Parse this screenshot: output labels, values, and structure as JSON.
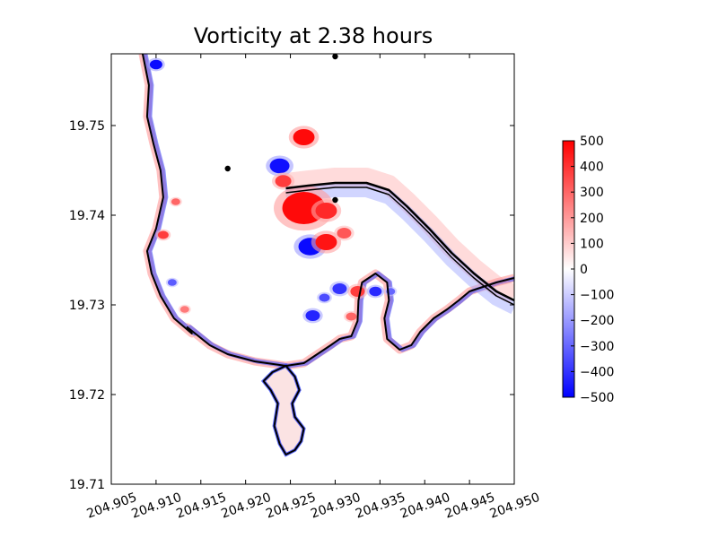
{
  "chart_data": {
    "type": "heatmap",
    "title": "Vorticity at 2.38 hours",
    "xlabel": "",
    "ylabel": "",
    "xlim": [
      204.905,
      204.95
    ],
    "ylim": [
      19.71,
      19.758
    ],
    "x_ticks": [
      "204.905",
      "204.910",
      "204.915",
      "204.920",
      "204.925",
      "204.930",
      "204.935",
      "204.940",
      "204.945",
      "204.950"
    ],
    "y_ticks": [
      "19.71",
      "19.72",
      "19.73",
      "19.74",
      "19.75"
    ],
    "x_tick_values": [
      204.905,
      204.91,
      204.915,
      204.92,
      204.925,
      204.93,
      204.935,
      204.94,
      204.945,
      204.95
    ],
    "y_tick_values": [
      19.71,
      19.72,
      19.73,
      19.74,
      19.75
    ],
    "colorbar": {
      "range": [
        -500,
        500
      ],
      "ticks": [
        "500",
        "400",
        "300",
        "200",
        "100",
        "0",
        "−100",
        "−200",
        "−300",
        "−400",
        "−500"
      ],
      "tick_values": [
        500,
        400,
        300,
        200,
        100,
        0,
        -100,
        -200,
        -300,
        -400,
        -500
      ],
      "colormap": [
        "#0000ff",
        "#ffffff",
        "#ff0000"
      ]
    },
    "coastline": [
      [
        204.9085,
        19.758
      ],
      [
        204.9092,
        19.7545
      ],
      [
        204.909,
        19.751
      ],
      [
        204.9097,
        19.748
      ],
      [
        204.9105,
        19.745
      ],
      [
        204.9108,
        19.742
      ],
      [
        204.91,
        19.7385
      ],
      [
        204.909,
        19.736
      ],
      [
        204.9095,
        19.7335
      ],
      [
        204.9105,
        19.731
      ],
      [
        204.912,
        19.7285
      ],
      [
        204.914,
        19.7268
      ],
      [
        204.9135,
        19.7275
      ],
      [
        204.916,
        19.7255
      ],
      [
        204.918,
        19.7245
      ],
      [
        204.921,
        19.7237
      ],
      [
        204.9245,
        19.7232
      ],
      [
        204.9265,
        19.7235
      ],
      [
        204.928,
        19.7245
      ],
      [
        204.9295,
        19.7255
      ],
      [
        204.9305,
        19.7262
      ],
      [
        204.9318,
        19.7265
      ],
      [
        204.9325,
        19.7282
      ],
      [
        204.9326,
        19.7305
      ],
      [
        204.933,
        19.7325
      ],
      [
        204.9345,
        19.7335
      ],
      [
        204.9358,
        19.7325
      ],
      [
        204.936,
        19.7305
      ],
      [
        204.9355,
        19.7285
      ],
      [
        204.9358,
        19.7262
      ],
      [
        204.9372,
        19.725
      ],
      [
        204.9385,
        19.7255
      ],
      [
        204.9395,
        19.727
      ],
      [
        204.941,
        19.7285
      ],
      [
        204.9425,
        19.7295
      ],
      [
        204.9438,
        19.7305
      ],
      [
        204.945,
        19.7315
      ],
      [
        204.9465,
        19.732
      ],
      [
        204.948,
        19.7325
      ],
      [
        204.95,
        19.733
      ]
    ],
    "bay_outline": [
      [
        204.9245,
        19.7232
      ],
      [
        204.9255,
        19.722
      ],
      [
        204.926,
        19.7205
      ],
      [
        204.9252,
        19.719
      ],
      [
        204.9255,
        19.7175
      ],
      [
        204.9265,
        19.7162
      ],
      [
        204.9262,
        19.7148
      ],
      [
        204.9255,
        19.7138
      ],
      [
        204.9245,
        19.7133
      ],
      [
        204.9238,
        19.7145
      ],
      [
        204.9232,
        19.7165
      ],
      [
        204.9236,
        19.719
      ],
      [
        204.9228,
        19.7205
      ],
      [
        204.922,
        19.7215
      ],
      [
        204.923,
        19.7225
      ]
    ],
    "breakwater": [
      [
        204.9245,
        19.743
      ],
      [
        204.927,
        19.7433
      ],
      [
        204.93,
        19.7436
      ],
      [
        204.9335,
        19.7436
      ],
      [
        204.936,
        19.7428
      ],
      [
        204.938,
        19.741
      ],
      [
        204.9405,
        19.7385
      ],
      [
        204.943,
        19.7358
      ],
      [
        204.9455,
        19.7335
      ],
      [
        204.948,
        19.7315
      ],
      [
        204.95,
        19.7305
      ]
    ],
    "stations": [
      {
        "x": 204.93,
        "y": 19.7577
      },
      {
        "x": 204.918,
        "y": 19.7452
      },
      {
        "x": 204.93,
        "y": 19.7417
      }
    ],
    "eddies": [
      {
        "x": 204.9265,
        "y": 19.7487,
        "r": 0.0012,
        "v": 480
      },
      {
        "x": 204.9238,
        "y": 19.7455,
        "r": 0.0011,
        "v": -470
      },
      {
        "x": 204.9242,
        "y": 19.7438,
        "r": 0.0009,
        "v": 380
      },
      {
        "x": 204.9265,
        "y": 19.7408,
        "r": 0.0024,
        "v": 480
      },
      {
        "x": 204.929,
        "y": 19.7405,
        "r": 0.0012,
        "v": 420
      },
      {
        "x": 204.9272,
        "y": 19.7365,
        "r": 0.0013,
        "v": -480
      },
      {
        "x": 204.929,
        "y": 19.737,
        "r": 0.0012,
        "v": 460
      },
      {
        "x": 204.931,
        "y": 19.738,
        "r": 0.0008,
        "v": 330
      },
      {
        "x": 204.9305,
        "y": 19.7318,
        "r": 0.0008,
        "v": -400
      },
      {
        "x": 204.9325,
        "y": 19.7315,
        "r": 0.0008,
        "v": 380
      },
      {
        "x": 204.9288,
        "y": 19.7308,
        "r": 0.0006,
        "v": -350
      },
      {
        "x": 204.9275,
        "y": 19.7288,
        "r": 0.0008,
        "v": -430
      },
      {
        "x": 204.9345,
        "y": 19.7315,
        "r": 0.0007,
        "v": -420
      },
      {
        "x": 204.9362,
        "y": 19.7315,
        "r": 0.0005,
        "v": -300
      },
      {
        "x": 204.9318,
        "y": 19.7287,
        "r": 0.0006,
        "v": 300
      },
      {
        "x": 204.9118,
        "y": 19.7325,
        "r": 0.0005,
        "v": -320
      },
      {
        "x": 204.9108,
        "y": 19.7378,
        "r": 0.0006,
        "v": 380
      },
      {
        "x": 204.9122,
        "y": 19.7415,
        "r": 0.0005,
        "v": 300
      },
      {
        "x": 204.91,
        "y": 19.7568,
        "r": 0.0007,
        "v": -480
      },
      {
        "x": 204.9132,
        "y": 19.7295,
        "r": 0.0005,
        "v": 260
      }
    ]
  }
}
